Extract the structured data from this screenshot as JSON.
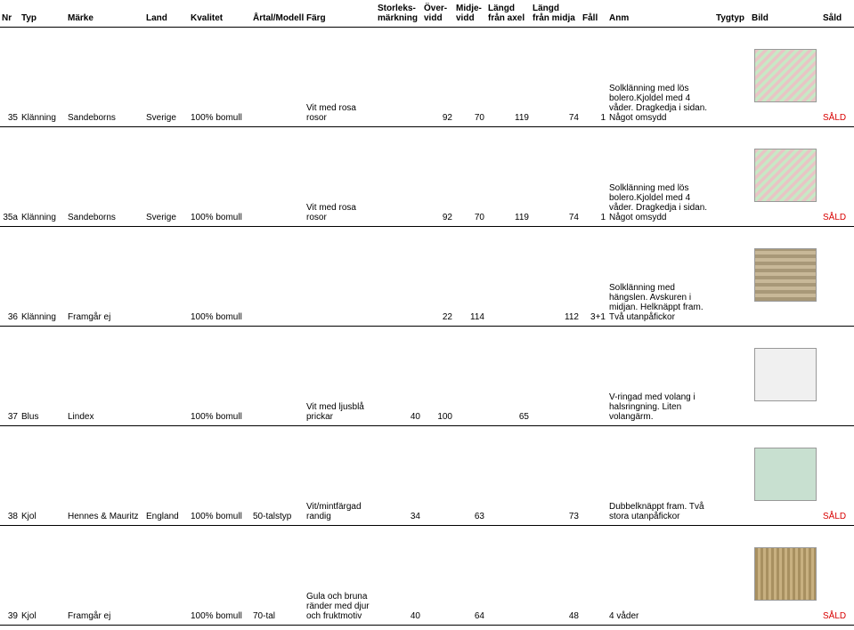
{
  "headers": {
    "nr": "Nr",
    "typ": "Typ",
    "marke": "Märke",
    "land": "Land",
    "kvalitet": "Kvalitet",
    "artal": "Årtal/Modell",
    "farg": "Färg",
    "storlek1": "Storleks-",
    "storlek2": "märkning",
    "over1": "Över-",
    "over2": "vidd",
    "midje1": "Midje-",
    "midje2": "vidd",
    "laxel1": "Längd",
    "laxel2": "från axel",
    "lmidja1": "Längd",
    "lmidja2": "från midja",
    "fall": "Fåll",
    "anm": "Anm",
    "tygtyp": "Tygtyp",
    "bild": "Bild",
    "sald": "Såld"
  },
  "rows": [
    {
      "nr": "35",
      "typ": "Klänning",
      "marke": "Sandeborns",
      "land": "Sverige",
      "kvalitet": "100% bomull",
      "artal": "",
      "farg": "Vit med rosa rosor",
      "storlek": "",
      "over": "92",
      "midje": "70",
      "laxel": "119",
      "lmidja": "74",
      "fall": "1",
      "anm": "Solklänning med lös bolero.Kjoldel med 4 våder. Dragkedja i sidan. Något omsydd",
      "tygtyp": "",
      "thumb": "floral",
      "sald": "SÅLD"
    },
    {
      "nr": "35a",
      "typ": "Klänning",
      "marke": "Sandeborns",
      "land": "Sverige",
      "kvalitet": "100% bomull",
      "artal": "",
      "farg": "Vit med rosa rosor",
      "storlek": "",
      "over": "92",
      "midje": "70",
      "laxel": "119",
      "lmidja": "74",
      "fall": "1",
      "anm": "Solklänning med lös bolero.Kjoldel med 4 våder. Dragkedja i sidan. Något omsydd",
      "tygtyp": "",
      "thumb": "floral",
      "sald": "SÅLD"
    },
    {
      "nr": "36",
      "typ": "Klänning",
      "marke": "Framgår ej",
      "land": "",
      "kvalitet": "100% bomull",
      "artal": "",
      "farg": "",
      "storlek": "",
      "over": "22",
      "midje": "114",
      "laxel": "",
      "lmidja": "112",
      "fall": "3+1",
      "anm": "Solklänning med hängslen. Avskuren i midjan. Helknäppt fram. Två utanpåfickor",
      "tygtyp": "",
      "thumb": "pat1",
      "sald": ""
    },
    {
      "nr": "37",
      "typ": "Blus",
      "marke": "Lindex",
      "land": "",
      "kvalitet": "100% bomull",
      "artal": "",
      "farg": "Vit med ljusblå prickar",
      "storlek": "40",
      "over": "100",
      "midje": "",
      "laxel": "65",
      "lmidja": "",
      "fall": "",
      "anm": "V-ringad med volang i halsringning. Liten volangärm.",
      "tygtyp": "",
      "thumb": "white",
      "sald": ""
    },
    {
      "nr": "38",
      "typ": "Kjol",
      "marke": "Hennes & Mauritz",
      "land": "England",
      "kvalitet": "100% bomull",
      "artal": "50-talstyp",
      "farg": "Vit/mintfärgad randig",
      "storlek": "34",
      "over": "",
      "midje": "63",
      "laxel": "",
      "lmidja": "73",
      "fall": "",
      "anm": "Dubbelknäppt fram. Två stora utanpåfickor",
      "tygtyp": "",
      "thumb": "mint",
      "sald": "SÅLD"
    },
    {
      "nr": "39",
      "typ": "Kjol",
      "marke": "Framgår ej",
      "land": "",
      "kvalitet": "100% bomull",
      "artal": "70-tal",
      "farg": "Gula och bruna ränder med djur och fruktmotiv",
      "storlek": "40",
      "over": "",
      "midje": "64",
      "laxel": "",
      "lmidja": "48",
      "fall": "",
      "anm": "4 våder",
      "tygtyp": "",
      "thumb": "skirt",
      "sald": "SÅLD"
    }
  ]
}
